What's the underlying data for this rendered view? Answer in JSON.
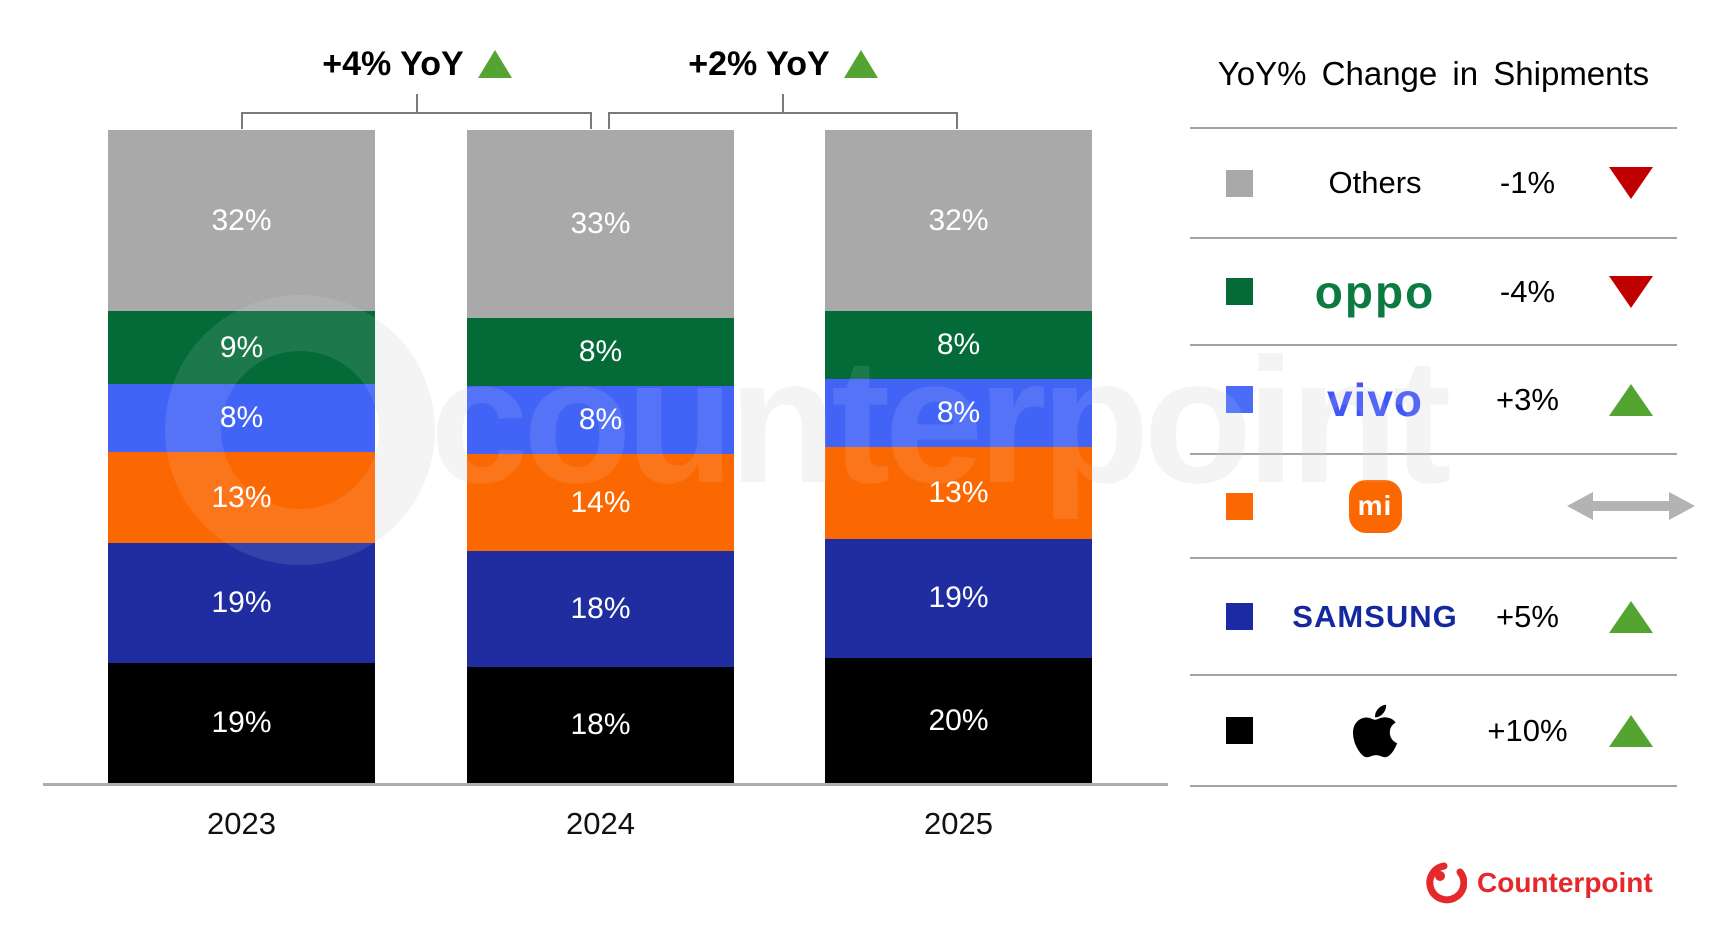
{
  "chart_data": {
    "type": "bar",
    "subtype": "stacked-100",
    "title": "",
    "categories": [
      "2023",
      "2024",
      "2025"
    ],
    "series": [
      {
        "name": "Apple",
        "color": "#000000",
        "values": [
          19,
          18,
          20
        ]
      },
      {
        "name": "Samsung",
        "color": "#1f2da0",
        "values": [
          19,
          18,
          19
        ]
      },
      {
        "name": "Xiaomi",
        "color": "#fb6700",
        "values": [
          13,
          14,
          13
        ]
      },
      {
        "name": "vivo",
        "color": "#4264f6",
        "values": [
          8,
          8,
          8
        ]
      },
      {
        "name": "OPPO",
        "color": "#046a38",
        "values": [
          9,
          8,
          8
        ]
      },
      {
        "name": "Others",
        "color": "#a9a9a9",
        "values": [
          32,
          33,
          32
        ]
      }
    ],
    "value_suffix": "%",
    "stack_order_note": "series listed bottom-to-top",
    "legend_position": "right",
    "grid": false
  },
  "annotations": [
    {
      "label": "+4% YoY",
      "trend": "up",
      "between": [
        "2023",
        "2024"
      ]
    },
    {
      "label": "+2% YoY",
      "trend": "up",
      "between": [
        "2024",
        "2025"
      ]
    }
  ],
  "legend": {
    "title": "YoY% Change in Shipments",
    "rows": [
      {
        "brand": "Others",
        "display": "text",
        "swatch": "#a9a9a9",
        "change": "-1%",
        "trend": "down"
      },
      {
        "brand": "oppo",
        "display": "logo-oppo",
        "swatch": "#046a38",
        "change": "-4%",
        "trend": "down"
      },
      {
        "brand": "vivo",
        "display": "logo-vivo",
        "swatch": "#4a6cf7",
        "change": "+3%",
        "trend": "up"
      },
      {
        "brand": "mi",
        "display": "logo-mi",
        "swatch": "#fb6700",
        "change": "",
        "trend": "flat"
      },
      {
        "brand": "SAMSUNG",
        "display": "logo-samsung",
        "swatch": "#1b2ba3",
        "change": "+5%",
        "trend": "up"
      },
      {
        "brand": "Apple",
        "display": "logo-apple",
        "swatch": "#000000",
        "change": "+10%",
        "trend": "up"
      }
    ]
  },
  "watermark": {
    "text": "counterpoint"
  },
  "footer": {
    "brand": "Counterpoint"
  },
  "colors": {
    "trend_up": "#54a431",
    "trend_down": "#c00000",
    "trend_flat": "#b3b3b3",
    "axis_line": "#aeaeae",
    "bracket": "#7a7a7a",
    "footer_brand": "#e4282b"
  }
}
